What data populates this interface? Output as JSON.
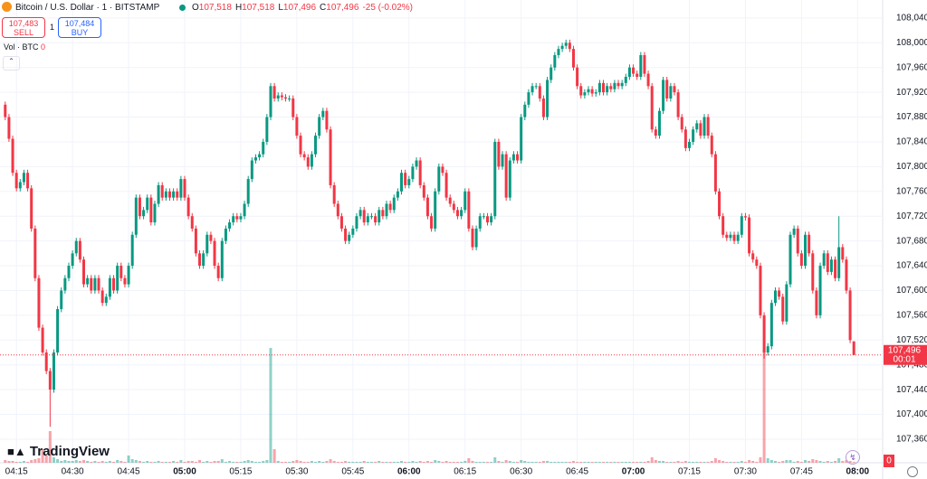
{
  "header": {
    "title": "Bitcoin / U.S. Dollar · 1 · BITSTAMP",
    "ohlc": [
      {
        "key": "O",
        "value": "107,518"
      },
      {
        "key": "H",
        "value": "107,518"
      },
      {
        "key": "L",
        "value": "107,496"
      },
      {
        "key": "C",
        "value": "107,496"
      }
    ],
    "change": "-25 (-0.02%)",
    "sell": {
      "price": "107,483",
      "label": "SELL"
    },
    "quantity": "1",
    "buy": {
      "price": "107,484",
      "label": "BUY"
    },
    "volume_label": "Vol · BTC",
    "volume_value": "0"
  },
  "logo": "TradingView",
  "chart_data": {
    "type": "candlestick",
    "up_color": "#089981",
    "down_color": "#f23645",
    "grid": true,
    "open": [
      107900,
      107880,
      107845,
      107790,
      107765,
      107775,
      107790,
      107765,
      107700,
      107620,
      107540,
      107500,
      107470,
      107440,
      107500,
      107570,
      107600,
      107620,
      107640,
      107660,
      107680,
      107650,
      107610,
      107620,
      107600,
      107620,
      107600,
      107580,
      107590,
      107620,
      107600,
      107640,
      107620,
      107610,
      107640,
      107690,
      107750,
      107720,
      107730,
      107750,
      107710,
      107740,
      107770,
      107750,
      107760,
      107750,
      107760,
      107750,
      107780,
      107750,
      107720,
      107700,
      107660,
      107640,
      107660,
      107690,
      107680,
      107640,
      107620,
      107680,
      107700,
      107710,
      107720,
      107715,
      107720,
      107740,
      107780,
      107810,
      107815,
      107820,
      107840,
      107880,
      107930,
      107910,
      107915,
      107912,
      107910,
      107910,
      107880,
      107850,
      107820,
      107815,
      107800,
      107820,
      107850,
      107880,
      107890,
      107860,
      107770,
      107740,
      107720,
      107700,
      107680,
      107690,
      107700,
      107720,
      107730,
      107710,
      107720,
      107720,
      107710,
      107730,
      107720,
      107740,
      107730,
      107750,
      107760,
      107790,
      107770,
      107780,
      107800,
      107810,
      107770,
      107750,
      107720,
      107700,
      107760,
      107800,
      107790,
      107750,
      107740,
      107730,
      107720,
      107730,
      107760,
      107700,
      107670,
      107700,
      107720,
      107720,
      107710,
      107720,
      107840,
      107800,
      107820,
      107750,
      107810,
      107820,
      107810,
      107880,
      107900,
      107920,
      107930,
      107930,
      107910,
      107880,
      107940,
      107960,
      107980,
      107990,
      107995,
      108000,
      107990,
      107960,
      107930,
      107915,
      107920,
      107925,
      107918,
      107920,
      107935,
      107920,
      107930,
      107925,
      107935,
      107930,
      107935,
      107945,
      107960,
      107950,
      107945,
      107980,
      107950,
      107930,
      107860,
      107850,
      107890,
      107940,
      107910,
      107930,
      107920,
      107880,
      107860,
      107830,
      107840,
      107860,
      107870,
      107850,
      107880,
      107850,
      107820,
      107760,
      107720,
      107690,
      107685,
      107690,
      107680,
      107690,
      107720,
      107718,
      107660,
      107650,
      107640,
      107560,
      107500,
      107510,
      107580,
      107600,
      107590,
      107550,
      107610,
      107690,
      107700,
      107660,
      107640,
      107690,
      107660,
      107600,
      107560,
      107640,
      107660,
      107630,
      107650,
      107620,
      107670,
      107650,
      107600,
      107518
    ],
    "high": [
      107905,
      107885,
      107850,
      107795,
      107780,
      107795,
      107795,
      107770,
      107705,
      107625,
      107545,
      107505,
      107475,
      107505,
      107575,
      107605,
      107625,
      107645,
      107665,
      107685,
      107685,
      107655,
      107625,
      107625,
      107625,
      107625,
      107605,
      107595,
      107625,
      107625,
      107645,
      107645,
      107625,
      107645,
      107695,
      107755,
      107755,
      107735,
      107755,
      107755,
      107745,
      107775,
      107775,
      107765,
      107765,
      107765,
      107765,
      107785,
      107785,
      107755,
      107725,
      107705,
      107665,
      107665,
      107695,
      107695,
      107685,
      107645,
      107685,
      107705,
      107715,
      107725,
      107725,
      107725,
      107745,
      107785,
      107815,
      107820,
      107825,
      107845,
      107885,
      107935,
      107935,
      107920,
      107920,
      107917,
      107915,
      107915,
      107885,
      107855,
      107825,
      107820,
      107825,
      107855,
      107885,
      107895,
      107895,
      107865,
      107775,
      107745,
      107725,
      107705,
      107695,
      107705,
      107725,
      107735,
      107735,
      107725,
      107725,
      107725,
      107735,
      107735,
      107745,
      107745,
      107755,
      107765,
      107795,
      107795,
      107785,
      107805,
      107815,
      107815,
      107775,
      107755,
      107725,
      107765,
      107805,
      107805,
      107795,
      107755,
      107745,
      107735,
      107735,
      107765,
      107765,
      107705,
      107705,
      107725,
      107725,
      107725,
      107725,
      107845,
      107845,
      107825,
      107825,
      107815,
      107825,
      107825,
      107885,
      107905,
      107925,
      107935,
      107935,
      107935,
      107915,
      107945,
      107965,
      107985,
      107995,
      108000,
      108005,
      108005,
      107995,
      107965,
      107935,
      107925,
      107930,
      107930,
      107925,
      107940,
      107940,
      107935,
      107935,
      107940,
      107940,
      107940,
      107950,
      107965,
      107965,
      107955,
      107985,
      107985,
      107955,
      107935,
      107865,
      107895,
      107945,
      107945,
      107935,
      107935,
      107925,
      107885,
      107865,
      107845,
      107865,
      107875,
      107875,
      107885,
      107885,
      107855,
      107825,
      107765,
      107725,
      107695,
      107695,
      107695,
      107695,
      107725,
      107725,
      107723,
      107665,
      107655,
      107645,
      107565,
      107515,
      107585,
      107605,
      107605,
      107595,
      107615,
      107695,
      107705,
      107705,
      107665,
      107695,
      107695,
      107665,
      107605,
      107645,
      107665,
      107665,
      107655,
      107655,
      107720,
      107675,
      107655,
      107605,
      107518
    ],
    "low": [
      107875,
      107840,
      107785,
      107760,
      107760,
      107770,
      107760,
      107695,
      107615,
      107535,
      107495,
      107465,
      107380,
      107435,
      107495,
      107565,
      107595,
      107615,
      107635,
      107655,
      107645,
      107605,
      107605,
      107595,
      107595,
      107595,
      107575,
      107575,
      107585,
      107595,
      107595,
      107615,
      107605,
      107605,
      107635,
      107685,
      107715,
      107715,
      107725,
      107705,
      107705,
      107735,
      107745,
      107745,
      107745,
      107745,
      107745,
      107745,
      107745,
      107715,
      107695,
      107655,
      107635,
      107635,
      107655,
      107675,
      107635,
      107615,
      107615,
      107675,
      107695,
      107705,
      107710,
      107710,
      107715,
      107735,
      107775,
      107805,
      107810,
      107815,
      107835,
      107875,
      107905,
      107905,
      107907,
      107905,
      107905,
      107875,
      107845,
      107815,
      107810,
      107795,
      107795,
      107815,
      107845,
      107875,
      107855,
      107765,
      107735,
      107715,
      107695,
      107675,
      107675,
      107685,
      107695,
      107715,
      107705,
      107705,
      107715,
      107705,
      107705,
      107715,
      107715,
      107725,
      107725,
      107745,
      107755,
      107765,
      107765,
      107775,
      107795,
      107765,
      107745,
      107715,
      107695,
      107695,
      107755,
      107785,
      107745,
      107735,
      107725,
      107715,
      107715,
      107725,
      107695,
      107665,
      107665,
      107695,
      107715,
      107705,
      107705,
      107715,
      107795,
      107795,
      107745,
      107745,
      107805,
      107805,
      107805,
      107875,
      107895,
      107915,
      107925,
      107905,
      107875,
      107875,
      107935,
      107955,
      107975,
      107985,
      107990,
      107985,
      107955,
      107925,
      107910,
      107910,
      107915,
      107913,
      107913,
      107915,
      107915,
      107915,
      107920,
      107920,
      107925,
      107925,
      107930,
      107940,
      107945,
      107940,
      107940,
      107945,
      107925,
      107855,
      107845,
      107845,
      107885,
      107905,
      107905,
      107915,
      107875,
      107855,
      107825,
      107825,
      107835,
      107855,
      107845,
      107845,
      107845,
      107815,
      107755,
      107715,
      107685,
      107680,
      107680,
      107675,
      107675,
      107685,
      107713,
      107655,
      107645,
      107635,
      107555,
      107490,
      107495,
      107505,
      107575,
      107585,
      107545,
      107545,
      107605,
      107685,
      107655,
      107635,
      107635,
      107655,
      107595,
      107555,
      107555,
      107635,
      107625,
      107625,
      107615,
      107615,
      107645,
      107595,
      107515,
      107496
    ],
    "close": [
      107880,
      107845,
      107790,
      107765,
      107775,
      107790,
      107765,
      107700,
      107620,
      107540,
      107500,
      107470,
      107440,
      107500,
      107570,
      107600,
      107620,
      107640,
      107660,
      107680,
      107650,
      107610,
      107620,
      107600,
      107620,
      107600,
      107580,
      107590,
      107620,
      107600,
      107640,
      107620,
      107610,
      107640,
      107690,
      107750,
      107720,
      107730,
      107750,
      107710,
      107740,
      107770,
      107750,
      107760,
      107750,
      107760,
      107750,
      107780,
      107750,
      107720,
      107700,
      107660,
      107640,
      107660,
      107690,
      107680,
      107640,
      107620,
      107680,
      107700,
      107710,
      107720,
      107715,
      107720,
      107740,
      107780,
      107810,
      107815,
      107820,
      107840,
      107880,
      107930,
      107910,
      107915,
      107912,
      107910,
      107910,
      107880,
      107850,
      107820,
      107815,
      107800,
      107820,
      107850,
      107880,
      107890,
      107860,
      107770,
      107740,
      107720,
      107700,
      107680,
      107690,
      107700,
      107720,
      107730,
      107710,
      107720,
      107720,
      107710,
      107730,
      107720,
      107740,
      107730,
      107750,
      107760,
      107790,
      107770,
      107780,
      107800,
      107810,
      107770,
      107750,
      107720,
      107700,
      107760,
      107800,
      107790,
      107750,
      107740,
      107730,
      107720,
      107730,
      107760,
      107700,
      107670,
      107700,
      107720,
      107720,
      107710,
      107720,
      107840,
      107800,
      107820,
      107750,
      107810,
      107820,
      107810,
      107880,
      107900,
      107920,
      107930,
      107930,
      107910,
      107880,
      107940,
      107960,
      107980,
      107990,
      107995,
      108000,
      107990,
      107960,
      107930,
      107915,
      107920,
      107925,
      107918,
      107920,
      107935,
      107920,
      107930,
      107925,
      107935,
      107930,
      107935,
      107945,
      107960,
      107950,
      107945,
      107980,
      107950,
      107930,
      107860,
      107850,
      107890,
      107940,
      107910,
      107930,
      107920,
      107880,
      107860,
      107830,
      107840,
      107860,
      107870,
      107850,
      107880,
      107850,
      107820,
      107760,
      107720,
      107690,
      107685,
      107690,
      107680,
      107690,
      107720,
      107718,
      107660,
      107650,
      107640,
      107560,
      107500,
      107510,
      107580,
      107600,
      107590,
      107550,
      107610,
      107690,
      107700,
      107660,
      107640,
      107690,
      107660,
      107600,
      107560,
      107640,
      107660,
      107630,
      107650,
      107620,
      107670,
      107650,
      107600,
      107520,
      107496
    ],
    "volume": [
      0.3,
      0.2,
      0.2,
      0.1,
      0.1,
      0.2,
      0.1,
      0.3,
      0.4,
      0.5,
      1.5,
      0.8,
      3.5,
      0.6,
      0.4,
      0.2,
      0.3,
      0.2,
      0.2,
      0.3,
      0.2,
      0.3,
      0.2,
      0.1,
      0.2,
      0.1,
      0.2,
      0.1,
      0.2,
      0.1,
      0.3,
      0.2,
      0.1,
      0.8,
      0.4,
      0.3,
      0.2,
      0.1,
      0.2,
      0.1,
      0.1,
      0.2,
      0.1,
      0.1,
      0.1,
      0.2,
      0.1,
      0.3,
      0.1,
      0.2,
      0.2,
      0.1,
      0.3,
      0.1,
      0.2,
      0.1,
      0.2,
      0.2,
      0.4,
      0.1,
      0.2,
      0.1,
      0.1,
      0.1,
      0.2,
      0.3,
      0.2,
      0.1,
      0.1,
      0.2,
      0.3,
      12.7,
      1.5,
      0.2,
      0.1,
      0.1,
      0.1,
      0.2,
      0.3,
      0.2,
      0.1,
      0.1,
      0.2,
      0.1,
      0.2,
      0.1,
      0.2,
      0.4,
      0.2,
      0.1,
      0.1,
      0.2,
      0.1,
      0.1,
      0.1,
      0.1,
      0.2,
      0.1,
      0.1,
      0.1,
      0.2,
      0.1,
      0.1,
      0.1,
      0.1,
      0.1,
      0.2,
      0.1,
      0.1,
      0.2,
      0.1,
      0.2,
      0.1,
      0.2,
      0.1,
      0.3,
      0.2,
      0.1,
      0.2,
      0.1,
      0.1,
      0.1,
      0.1,
      0.2,
      0.5,
      0.2,
      0.1,
      0.1,
      0.1,
      0.1,
      0.1,
      0.6,
      0.2,
      0.1,
      0.3,
      0.2,
      0.1,
      0.1,
      0.3,
      0.2,
      0.1,
      0.1,
      0.1,
      0.1,
      0.2,
      0.2,
      0.1,
      0.1,
      0.1,
      0.1,
      0.1,
      0.1,
      0.2,
      0.1,
      0.1,
      0.1,
      0.1,
      0.1,
      0.1,
      0.1,
      0.1,
      0.1,
      0.1,
      0.1,
      0.1,
      0.1,
      0.1,
      0.1,
      0.1,
      0.1,
      0.1,
      0.1,
      0.2,
      0.6,
      0.3,
      0.2,
      0.2,
      0.1,
      0.1,
      0.1,
      0.2,
      0.1,
      0.2,
      0.1,
      0.1,
      0.1,
      0.1,
      0.1,
      0.1,
      0.2,
      0.5,
      0.3,
      0.2,
      0.1,
      0.1,
      0.1,
      0.1,
      0.2,
      0.1,
      0.3,
      0.2,
      0.1,
      0.6,
      12.7,
      0.5,
      0.3,
      0.2,
      0.1,
      0.2,
      0.3,
      0.3,
      0.1,
      0.2,
      0.1,
      0.3,
      0.2,
      0.4,
      0.3,
      0.2,
      0.1,
      0.2,
      0.1,
      0.2,
      0.5,
      0.2,
      0.3,
      0.2,
      0.1
    ],
    "ylim": [
      107322,
      108069
    ],
    "yticks": [
      {
        "value": 108040,
        "label": "108,040"
      },
      {
        "value": 108000,
        "label": "108,000"
      },
      {
        "value": 107960,
        "label": "107,960"
      },
      {
        "value": 107920,
        "label": "107,920"
      },
      {
        "value": 107880,
        "label": "107,880"
      },
      {
        "value": 107840,
        "label": "107,840"
      },
      {
        "value": 107800,
        "label": "107,800"
      },
      {
        "value": 107760,
        "label": "107,760"
      },
      {
        "value": 107720,
        "label": "107,720"
      },
      {
        "value": 107680,
        "label": "107,680"
      },
      {
        "value": 107640,
        "label": "107,640"
      },
      {
        "value": 107600,
        "label": "107,600"
      },
      {
        "value": 107560,
        "label": "107,560"
      },
      {
        "value": 107520,
        "label": "107,520"
      },
      {
        "value": 107480,
        "label": "107,480"
      },
      {
        "value": 107440,
        "label": "107,440"
      },
      {
        "value": 107400,
        "label": "107,400"
      },
      {
        "value": 107360,
        "label": "107,360"
      }
    ],
    "xlim": [
      -1.4,
      234.7
    ],
    "xticks": [
      {
        "value": 3,
        "label": "04:15"
      },
      {
        "value": 18,
        "label": "04:30"
      },
      {
        "value": 33,
        "label": "04:45"
      },
      {
        "value": 48,
        "label": "05:00"
      },
      {
        "value": 63,
        "label": "05:15"
      },
      {
        "value": 78,
        "label": "05:30"
      },
      {
        "value": 93,
        "label": "05:45"
      },
      {
        "value": 108,
        "label": "06:00"
      },
      {
        "value": 123,
        "label": "06:15"
      },
      {
        "value": 138,
        "label": "06:30"
      },
      {
        "value": 153,
        "label": "06:45"
      },
      {
        "value": 168,
        "label": "07:00"
      },
      {
        "value": 183,
        "label": "07:15"
      },
      {
        "value": 198,
        "label": "07:30"
      },
      {
        "value": 213,
        "label": "07:45"
      },
      {
        "value": 228,
        "label": "08:00"
      }
    ],
    "last_price_label": "107,496",
    "countdown": "00:01",
    "volume_axis_label": "0"
  }
}
